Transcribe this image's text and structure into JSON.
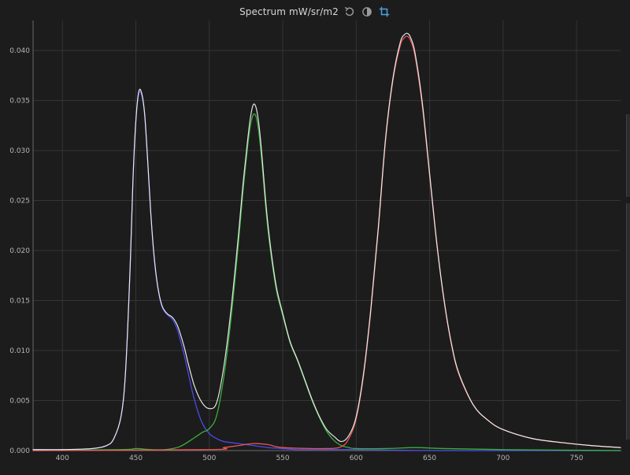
{
  "window": {
    "title": "Spectrum mW/sr/m2",
    "icons": [
      "reset-icon",
      "contrast-icon",
      "crop-icon"
    ],
    "accent_color": "#4aa3df"
  },
  "chart_data": {
    "type": "line",
    "title": "Spectrum mW/sr/m2",
    "xlabel": "",
    "ylabel": "",
    "xlim": [
      380,
      780
    ],
    "ylim": [
      0,
      0.043
    ],
    "xticks": [
      400,
      450,
      500,
      550,
      600,
      650,
      700,
      750
    ],
    "yticks": [
      0.0,
      0.005,
      0.01,
      0.015,
      0.02,
      0.025,
      0.03,
      0.035,
      0.04
    ],
    "ytick_labels": [
      "0.000",
      "0.005",
      "0.010",
      "0.015",
      "0.020",
      "0.025",
      "0.030",
      "0.035",
      "0.040"
    ],
    "grid": true,
    "legend": "none",
    "series": [
      {
        "color": "#5050ff",
        "x": [
          380,
          400,
          420,
          430,
          435,
          440,
          443,
          446,
          448,
          450,
          452,
          454,
          456,
          458,
          460,
          462,
          464,
          466,
          468,
          470,
          472,
          475,
          478,
          480,
          483,
          486,
          490,
          495,
          500,
          505,
          510,
          520,
          530,
          540,
          550,
          560,
          580,
          600,
          650,
          700,
          780
        ],
        "y": [
          0.0001,
          0.0001,
          0.0002,
          0.0005,
          0.0012,
          0.0035,
          0.008,
          0.018,
          0.027,
          0.033,
          0.0357,
          0.0355,
          0.0335,
          0.029,
          0.024,
          0.02,
          0.0172,
          0.0154,
          0.0143,
          0.0138,
          0.0135,
          0.0131,
          0.0122,
          0.0112,
          0.0095,
          0.0075,
          0.005,
          0.0028,
          0.0017,
          0.0012,
          0.0009,
          0.0007,
          0.0005,
          0.0003,
          0.0002,
          0.0001,
          0.0001,
          0.0001,
          0.0,
          0.0,
          0.0
        ]
      },
      {
        "color": "#3cc03c",
        "x": [
          380,
          440,
          450,
          460,
          470,
          480,
          490,
          495,
          500,
          505,
          510,
          515,
          520,
          523,
          526,
          528,
          530,
          532,
          534,
          536,
          538,
          540,
          543,
          546,
          550,
          555,
          560,
          565,
          570,
          575,
          580,
          585,
          590,
          595,
          600,
          620,
          640,
          660,
          700,
          780
        ],
        "y": [
          0.0,
          0.0001,
          0.0002,
          0.0001,
          0.0001,
          0.0004,
          0.0013,
          0.0018,
          0.0022,
          0.0035,
          0.0075,
          0.0135,
          0.021,
          0.026,
          0.0303,
          0.0325,
          0.0336,
          0.0333,
          0.0315,
          0.0285,
          0.025,
          0.022,
          0.0185,
          0.0158,
          0.0135,
          0.0108,
          0.009,
          0.007,
          0.005,
          0.0033,
          0.0019,
          0.001,
          0.0005,
          0.0003,
          0.0002,
          0.0002,
          0.0003,
          0.0002,
          0.0001,
          0.0
        ]
      },
      {
        "color": "#ff5a5a",
        "x": [
          380,
          500,
          510,
          520,
          530,
          540,
          550,
          580,
          590,
          595,
          600,
          605,
          610,
          615,
          620,
          625,
          630,
          633,
          635,
          637,
          640,
          645,
          650,
          655,
          660,
          665,
          670,
          680,
          690,
          700,
          720,
          740,
          760,
          780
        ],
        "y": [
          0.0,
          0.0001,
          0.0003,
          0.0005,
          0.0007,
          0.0006,
          0.0003,
          0.0002,
          0.0004,
          0.0012,
          0.0032,
          0.0075,
          0.014,
          0.022,
          0.031,
          0.037,
          0.0405,
          0.0413,
          0.0414,
          0.041,
          0.0395,
          0.0345,
          0.0275,
          0.0205,
          0.0148,
          0.0105,
          0.0076,
          0.0045,
          0.003,
          0.0021,
          0.0012,
          0.0008,
          0.0005,
          0.0003
        ]
      },
      {
        "color": "#f0f0f0",
        "x": [
          380,
          400,
          420,
          430,
          435,
          440,
          443,
          446,
          448,
          450,
          452,
          454,
          456,
          458,
          460,
          462,
          464,
          466,
          468,
          470,
          472,
          475,
          478,
          480,
          483,
          486,
          490,
          495,
          500,
          505,
          510,
          515,
          520,
          523,
          526,
          528,
          530,
          532,
          534,
          536,
          538,
          540,
          543,
          546,
          550,
          555,
          560,
          565,
          570,
          575,
          580,
          585,
          590,
          595,
          600,
          605,
          610,
          615,
          620,
          625,
          630,
          633,
          635,
          637,
          640,
          645,
          650,
          655,
          660,
          665,
          670,
          680,
          690,
          700,
          720,
          740,
          760,
          780
        ],
        "y": [
          0.0001,
          0.0001,
          0.0002,
          0.0005,
          0.0012,
          0.0035,
          0.008,
          0.018,
          0.027,
          0.033,
          0.0359,
          0.0357,
          0.0336,
          0.0291,
          0.0241,
          0.0201,
          0.0173,
          0.0155,
          0.0144,
          0.0139,
          0.0136,
          0.0133,
          0.0126,
          0.0118,
          0.0103,
          0.0085,
          0.0064,
          0.0048,
          0.0042,
          0.0048,
          0.0085,
          0.0144,
          0.0218,
          0.0267,
          0.0309,
          0.0333,
          0.0346,
          0.0342,
          0.0323,
          0.0292,
          0.0256,
          0.0225,
          0.0189,
          0.0161,
          0.0137,
          0.0109,
          0.0091,
          0.0071,
          0.0051,
          0.0034,
          0.0021,
          0.0014,
          0.0009,
          0.0015,
          0.0034,
          0.0077,
          0.0142,
          0.0222,
          0.0312,
          0.0372,
          0.0408,
          0.0416,
          0.0417,
          0.0413,
          0.0398,
          0.0348,
          0.0277,
          0.0206,
          0.0149,
          0.0106,
          0.0077,
          0.0045,
          0.003,
          0.0021,
          0.0012,
          0.0008,
          0.0005,
          0.0003
        ]
      }
    ]
  }
}
